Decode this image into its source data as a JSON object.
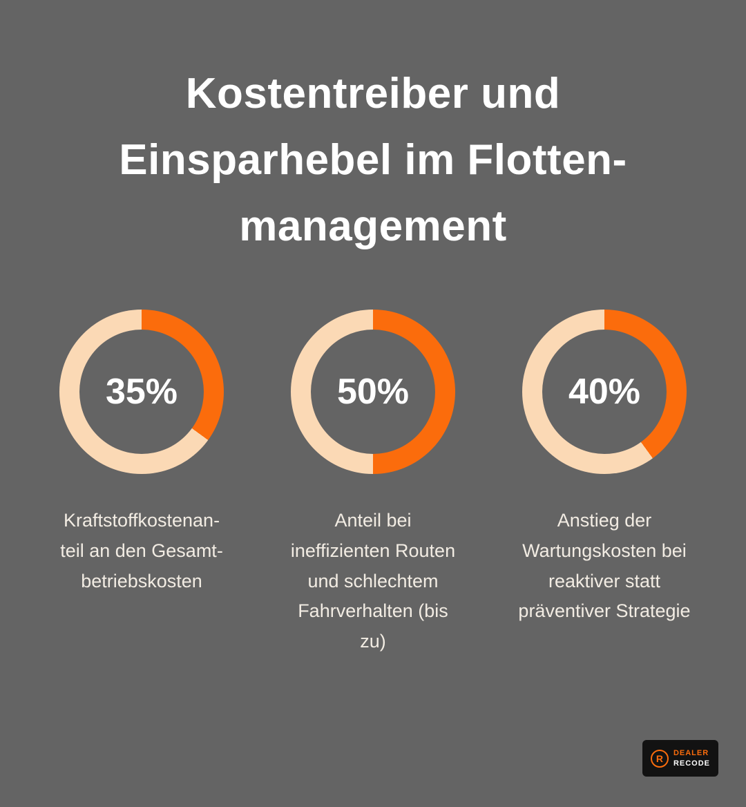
{
  "page": {
    "title": "Kostentreiber und\nEinsparhebel im Flotten-\nmanagement",
    "background": "#646464"
  },
  "chart_data": {
    "type": "pie",
    "subtype": "donut-group",
    "title": "Kostentreiber und Einsparhebel im Flottenmanagement",
    "legend": "none",
    "colors": {
      "arc": "#fb6c0c",
      "track": "#fbd9b5",
      "hole": "#646464",
      "label": "#ffffff",
      "caption": "#f2ece3"
    },
    "charts": [
      {
        "label": "35%",
        "value": 35,
        "caption": "Kraftstoffkostenan-\nteil an den Gesamt-\nbetriebskosten"
      },
      {
        "label": "50%",
        "value": 50,
        "caption": "Anteil bei\nineffizienten Routen\nund schlechtem\nFahrverhalten (bis\nzu)"
      },
      {
        "label": "40%",
        "value": 40,
        "caption": "Anstieg der\nWartungskosten bei\nreaktiver statt\npräventiver Strategie"
      }
    ]
  },
  "logo": {
    "icon_letter": "R",
    "line1": "DEALER",
    "line2": "RECODE"
  }
}
